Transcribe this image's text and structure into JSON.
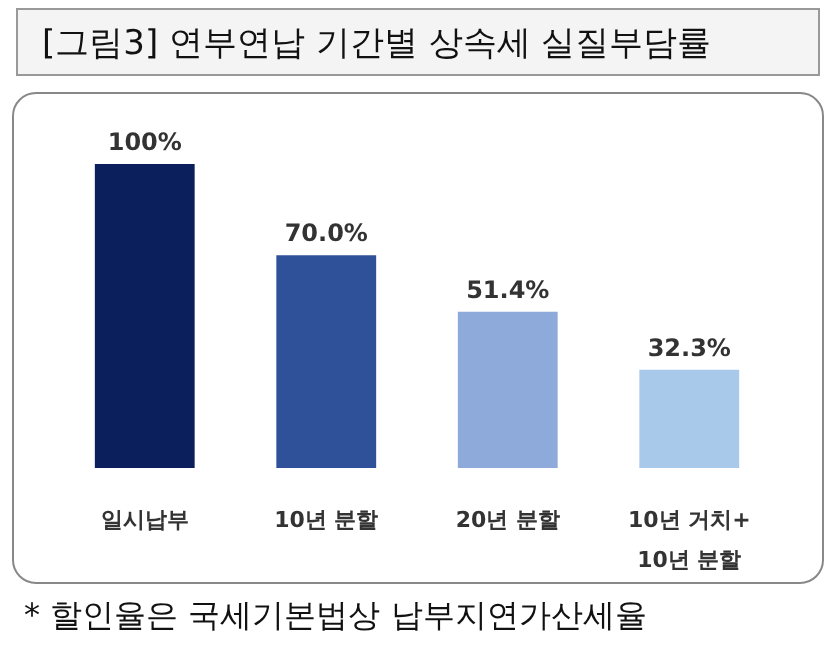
{
  "chart_data": {
    "type": "bar",
    "title": "[그림3] 연부연납 기간별 상속세 실질부담률",
    "categories": [
      "일시납부",
      "10년 분할",
      "20년 분할",
      "10년 거치+\n10년 분할"
    ],
    "values": [
      100,
      70.0,
      51.4,
      32.3
    ],
    "colors": [
      "#0b1f5c",
      "#2f5199",
      "#8eaadb",
      "#a9c9ea"
    ],
    "value_labels": [
      "100%",
      "70.0%",
      "51.4%",
      "32.3%"
    ],
    "ylim": [
      0,
      100
    ],
    "tick_labels": "x",
    "annotations": [
      "* 할인율은 국세기본법상 납부지연가산세율"
    ]
  }
}
